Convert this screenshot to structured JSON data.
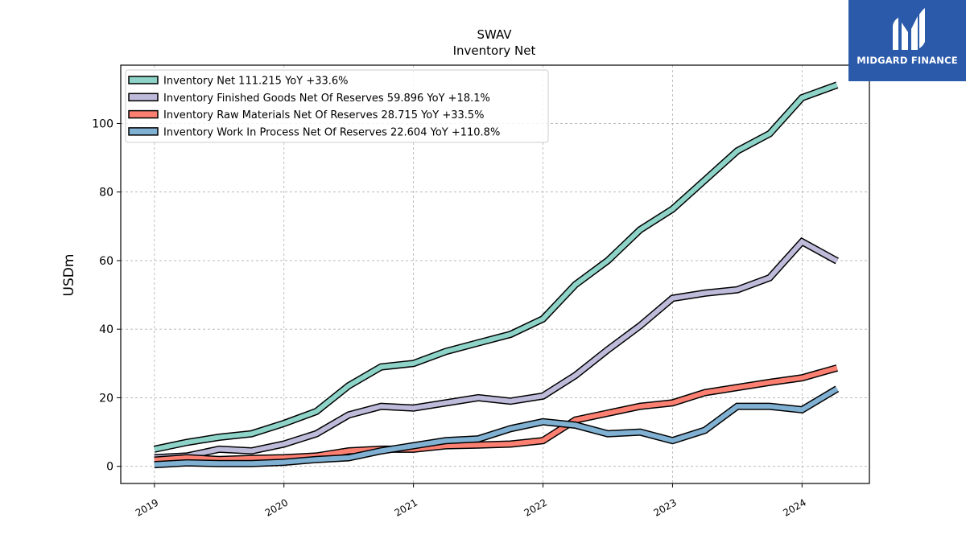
{
  "logo": {
    "text": "MIDGARD FINANCE",
    "bg": "#2b5aab"
  },
  "chart_data": {
    "type": "line",
    "title": "SWAV",
    "subtitle": "Inventory Net",
    "ylabel": "USDm",
    "xlabel": "",
    "ylim": [
      -5,
      117
    ],
    "xlim": [
      2018.74,
      2024.52
    ],
    "yticks": [
      0,
      20,
      40,
      60,
      80,
      100
    ],
    "xticks": [
      2019,
      2020,
      2021,
      2022,
      2023,
      2024
    ],
    "grid": true,
    "legend_position": "top-left",
    "x": [
      2019.0,
      2019.25,
      2019.5,
      2019.75,
      2020.0,
      2020.25,
      2020.5,
      2020.75,
      2021.0,
      2021.25,
      2021.5,
      2021.75,
      2022.0,
      2022.25,
      2022.5,
      2022.75,
      2023.0,
      2023.25,
      2023.5,
      2023.75,
      2024.0,
      2024.27
    ],
    "series": [
      {
        "name": "Inventory Net",
        "legend": "Inventory Net  111.215 YoY +33.6%",
        "color": "#8dd3c7",
        "values": [
          5.0,
          7.0,
          8.5,
          9.5,
          12.5,
          16.0,
          23.5,
          29.0,
          30.0,
          33.5,
          36.0,
          38.5,
          43.0,
          53.0,
          60.0,
          69.0,
          75.0,
          83.5,
          92.0,
          97.0,
          107.5,
          111.2
        ]
      },
      {
        "name": "Inventory Finished Goods Net Of Reserves",
        "legend": "Inventory Finished Goods Net Of Reserves  59.896 YoY +18.1%",
        "color": "#bebada",
        "values": [
          2.5,
          3.0,
          5.0,
          4.5,
          6.5,
          9.5,
          15.0,
          17.5,
          17.0,
          18.5,
          20.0,
          19.0,
          20.5,
          26.5,
          34.0,
          41.0,
          49.0,
          50.5,
          51.5,
          55.0,
          65.5,
          59.9
        ]
      },
      {
        "name": "Inventory Raw Materials Net Of Reserves",
        "legend": "Inventory Raw Materials Net Of Reserves  28.715 YoY +33.5%",
        "color": "#fb8072",
        "values": [
          1.8,
          2.5,
          2.0,
          2.3,
          2.5,
          3.0,
          4.5,
          5.0,
          5.0,
          6.0,
          6.2,
          6.5,
          7.5,
          13.5,
          15.5,
          17.5,
          18.5,
          21.5,
          23.0,
          24.5,
          25.8,
          28.7
        ]
      },
      {
        "name": "Inventory Work In Process Net Of Reserves",
        "legend": "Inventory Work In Process Net Of Reserves  22.604 YoY +110.8%",
        "color": "#80b1d3",
        "values": [
          0.5,
          1.0,
          0.8,
          0.8,
          1.2,
          2.0,
          2.5,
          4.5,
          6.0,
          7.5,
          8.0,
          11.0,
          13.0,
          12.0,
          9.5,
          10.0,
          7.5,
          10.5,
          17.5,
          17.5,
          16.5,
          22.6
        ]
      }
    ]
  }
}
